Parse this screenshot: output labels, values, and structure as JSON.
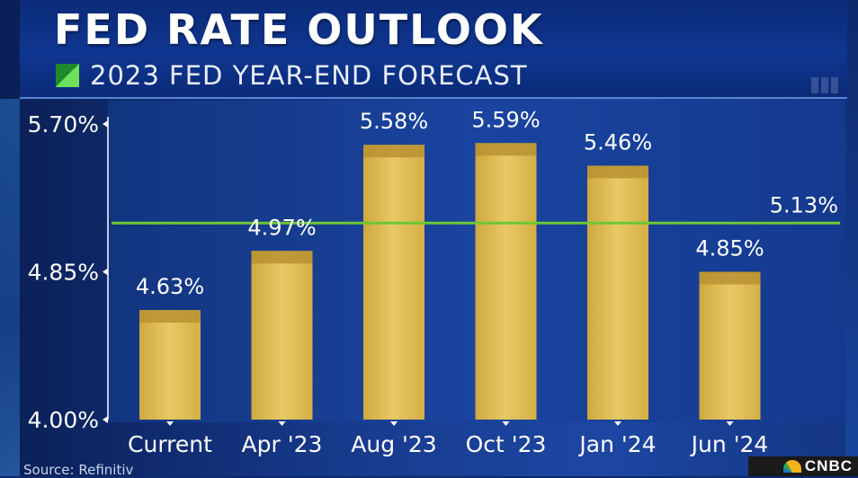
{
  "header": {
    "title": "FED RATE OUTLOOK",
    "subtitle": "2023 FED YEAR-END FORECAST"
  },
  "footer": {
    "source": "Source: Refinitiv",
    "network_logo": "CNBC",
    "logo_icon": "peacock-icon"
  },
  "colors": {
    "bar": "#e2c25a",
    "reference_line": "#6cc832",
    "plot_bg": "#143a8f",
    "text": "#ffffff"
  },
  "chart_data": {
    "type": "bar",
    "title": "FED RATE OUTLOOK",
    "subtitle": "2023 FED YEAR-END FORECAST",
    "categories": [
      "Current",
      "Apr '23",
      "Aug '23",
      "Oct '23",
      "Jan '24",
      "Jun '24"
    ],
    "values": [
      4.63,
      4.97,
      5.58,
      5.59,
      5.46,
      4.85
    ],
    "value_labels": [
      "4.63%",
      "4.97%",
      "5.58%",
      "5.59%",
      "5.46%",
      "4.85%"
    ],
    "ylim": [
      4.0,
      5.7
    ],
    "yticks": [
      4.0,
      4.85,
      5.7
    ],
    "ytick_labels": [
      "4.00%",
      "4.85%",
      "5.70%"
    ],
    "reference_line": {
      "value": 5.13,
      "label": "5.13%"
    },
    "xlabel": "",
    "ylabel": "",
    "grid": false,
    "legend": "none"
  }
}
